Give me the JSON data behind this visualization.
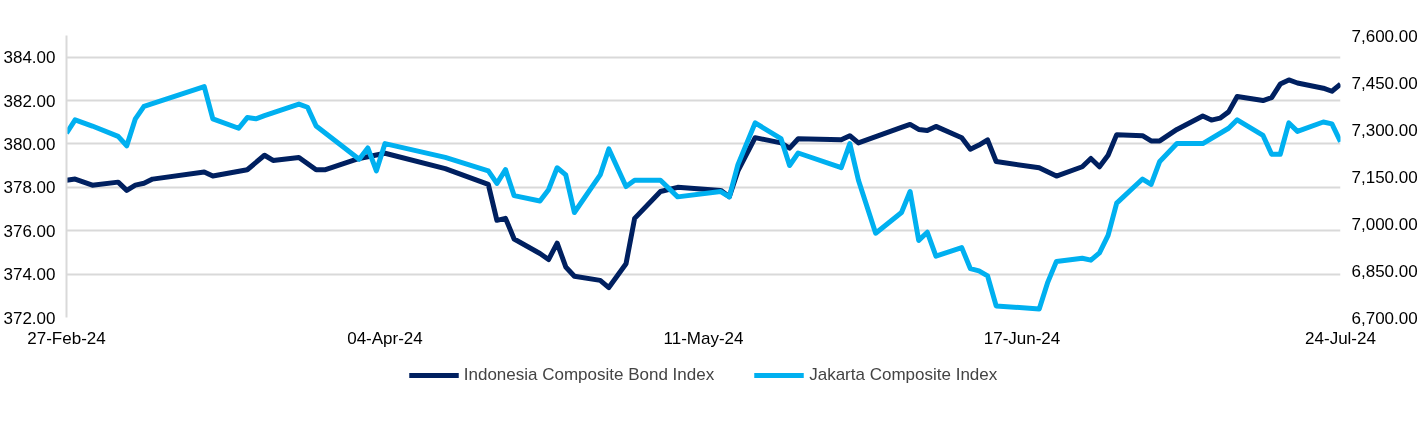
{
  "chart_data": {
    "type": "line",
    "xlim": [
      "2024-02-27",
      "2024-07-24"
    ],
    "ylim": [
      372,
      385
    ],
    "y2lim": [
      6700,
      7600
    ],
    "xticks": [
      {
        "value": "2024-02-27",
        "label": "27-Feb-24"
      },
      {
        "value": "2024-04-04",
        "label": "04-Apr-24"
      },
      {
        "value": "2024-05-11",
        "label": "11-May-24"
      },
      {
        "value": "2024-06-17",
        "label": "17-Jun-24"
      },
      {
        "value": "2024-07-24",
        "label": "24-Jul-24"
      }
    ],
    "yticks": [
      {
        "value": 372,
        "label": "372.00"
      },
      {
        "value": 374,
        "label": "374.00"
      },
      {
        "value": 376,
        "label": "376.00"
      },
      {
        "value": 378,
        "label": "378.00"
      },
      {
        "value": 380,
        "label": "380.00"
      },
      {
        "value": 382,
        "label": "382.00"
      },
      {
        "value": 384,
        "label": "384.00"
      }
    ],
    "y2ticks": [
      {
        "value": 6700,
        "label": "6,700.00"
      },
      {
        "value": 6850,
        "label": "6,850.00"
      },
      {
        "value": 7000,
        "label": "7,000.00"
      },
      {
        "value": 7150,
        "label": "7,150.00"
      },
      {
        "value": 7300,
        "label": "7,300.00"
      },
      {
        "value": 7450,
        "label": "7,450.00"
      },
      {
        "value": 7600,
        "label": "7,600.00"
      }
    ],
    "grid": "y",
    "legend": "bottom",
    "series": [
      {
        "name": "Indonesia Composite Bond Index",
        "color": "#002060",
        "x": [
          "2024-02-27",
          "2024-02-28",
          "2024-03-01",
          "2024-03-04",
          "2024-03-05",
          "2024-03-06",
          "2024-03-07",
          "2024-03-08",
          "2024-03-14",
          "2024-03-15",
          "2024-03-19",
          "2024-03-21",
          "2024-03-22",
          "2024-03-25",
          "2024-03-27",
          "2024-03-28",
          "2024-04-01",
          "2024-04-04",
          "2024-04-11",
          "2024-04-16",
          "2024-04-17",
          "2024-04-18",
          "2024-04-19",
          "2024-04-22",
          "2024-04-23",
          "2024-04-24",
          "2024-04-25",
          "2024-04-26",
          "2024-04-29",
          "2024-04-30",
          "2024-05-02",
          "2024-05-03",
          "2024-05-06",
          "2024-05-08",
          "2024-05-13",
          "2024-05-14",
          "2024-05-15",
          "2024-05-17",
          "2024-05-20",
          "2024-05-21",
          "2024-05-22",
          "2024-05-27",
          "2024-05-28",
          "2024-05-29",
          "2024-06-03",
          "2024-06-04",
          "2024-06-05",
          "2024-06-06",
          "2024-06-07",
          "2024-06-10",
          "2024-06-11",
          "2024-06-12",
          "2024-06-13",
          "2024-06-14",
          "2024-06-19",
          "2024-06-21",
          "2024-06-24",
          "2024-06-25",
          "2024-06-26",
          "2024-06-27",
          "2024-06-28",
          "2024-07-01",
          "2024-07-02",
          "2024-07-03",
          "2024-07-05",
          "2024-07-08",
          "2024-07-09",
          "2024-07-10",
          "2024-07-11",
          "2024-07-12",
          "2024-07-15",
          "2024-07-16",
          "2024-07-17",
          "2024-07-18",
          "2024-07-19",
          "2024-07-22",
          "2024-07-23",
          "2024-07-24"
        ],
        "values": [
          378.33,
          378.38,
          378.1,
          378.24,
          377.86,
          378.1,
          378.19,
          378.38,
          378.71,
          378.52,
          378.81,
          379.48,
          379.24,
          379.38,
          378.81,
          378.81,
          379.33,
          379.57,
          378.86,
          378.14,
          376.48,
          376.57,
          375.62,
          374.95,
          374.67,
          375.43,
          374.33,
          373.9,
          373.71,
          373.38,
          374.48,
          376.57,
          377.81,
          378.0,
          377.86,
          377.57,
          378.76,
          380.29,
          380.05,
          379.81,
          380.24,
          380.19,
          380.38,
          380.05,
          380.76,
          380.9,
          380.67,
          380.62,
          380.81,
          380.29,
          379.76,
          379.95,
          380.19,
          379.19,
          378.9,
          378.52,
          378.95,
          379.33,
          378.95,
          379.48,
          380.43,
          380.38,
          380.14,
          380.14,
          380.67,
          381.29,
          381.1,
          381.19,
          381.48,
          382.19,
          382.0,
          382.14,
          382.76,
          382.95,
          382.81,
          382.57,
          382.43,
          382.76
        ]
      },
      {
        "name": "Jakarta Composite Index",
        "color": "#00b0f0",
        "axis": "y2",
        "x": [
          "2024-02-27",
          "2024-02-28",
          "2024-03-01",
          "2024-03-04",
          "2024-03-05",
          "2024-03-06",
          "2024-03-07",
          "2024-03-14",
          "2024-03-15",
          "2024-03-18",
          "2024-03-19",
          "2024-03-20",
          "2024-03-21",
          "2024-03-25",
          "2024-03-26",
          "2024-03-27",
          "2024-04-01",
          "2024-04-02",
          "2024-04-03",
          "2024-04-04",
          "2024-04-11",
          "2024-04-16",
          "2024-04-17",
          "2024-04-18",
          "2024-04-19",
          "2024-04-22",
          "2024-04-23",
          "2024-04-24",
          "2024-04-25",
          "2024-04-26",
          "2024-04-29",
          "2024-04-30",
          "2024-05-02",
          "2024-05-03",
          "2024-05-06",
          "2024-05-08",
          "2024-05-13",
          "2024-05-14",
          "2024-05-15",
          "2024-05-17",
          "2024-05-20",
          "2024-05-21",
          "2024-05-22",
          "2024-05-27",
          "2024-05-28",
          "2024-05-29",
          "2024-05-31",
          "2024-06-03",
          "2024-06-04",
          "2024-06-05",
          "2024-06-06",
          "2024-06-07",
          "2024-06-10",
          "2024-06-11",
          "2024-06-12",
          "2024-06-13",
          "2024-06-14",
          "2024-06-19",
          "2024-06-20",
          "2024-06-21",
          "2024-06-24",
          "2024-06-25",
          "2024-06-26",
          "2024-06-27",
          "2024-06-28",
          "2024-07-01",
          "2024-07-02",
          "2024-07-03",
          "2024-07-05",
          "2024-07-08",
          "2024-07-11",
          "2024-07-12",
          "2024-07-15",
          "2024-07-16",
          "2024-07-17",
          "2024-07-18",
          "2024-07-19",
          "2024-07-22",
          "2024-07-23",
          "2024-07-24"
        ],
        "values": [
          7288,
          7331,
          7311,
          7278,
          7248,
          7334,
          7374,
          7437,
          7334,
          7304,
          7338,
          7334,
          7344,
          7381,
          7371,
          7311,
          7205,
          7241,
          7168,
          7255,
          7211,
          7168,
          7128,
          7172,
          7089,
          7072,
          7108,
          7178,
          7155,
          7035,
          7155,
          7238,
          7118,
          7138,
          7138,
          7085,
          7102,
          7085,
          7188,
          7321,
          7271,
          7185,
          7225,
          7178,
          7255,
          7138,
          6969,
          7035,
          7102,
          6946,
          6972,
          6896,
          6923,
          6856,
          6849,
          6833,
          6737,
          6727,
          6813,
          6879,
          6889,
          6883,
          6906,
          6962,
          7065,
          7142,
          7125,
          7198,
          7255,
          7255,
          7304,
          7331,
          7281,
          7221,
          7221,
          7321,
          7294,
          7324,
          7318,
          7261
        ]
      }
    ]
  }
}
